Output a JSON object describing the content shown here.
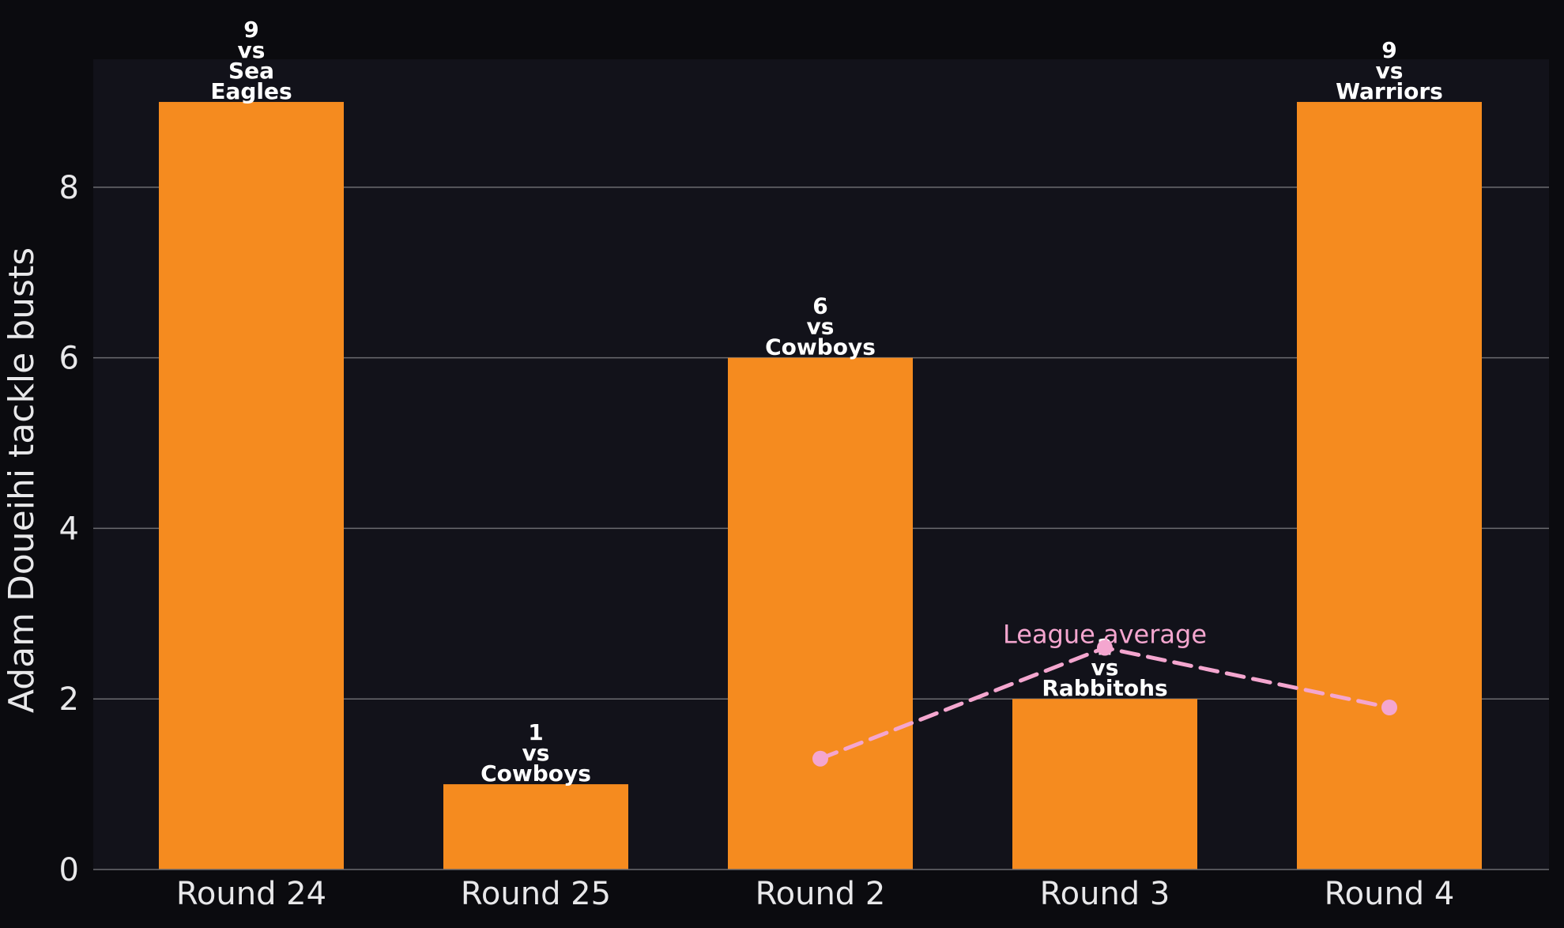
{
  "chart_data": {
    "type": "bar",
    "categories": [
      "Round 24",
      "Round 25",
      "Round 2",
      "Round 3",
      "Round 4"
    ],
    "values": [
      9,
      1,
      6,
      2,
      9
    ],
    "opponents": [
      "Sea Eagles",
      "Cowboys",
      "Cowboys",
      "Rabbitohs",
      "Warriors"
    ],
    "vs_word": "vs",
    "ylabel": "Adam Doueihi tackle busts",
    "xlabel": "",
    "ylim": [
      0,
      9.5
    ],
    "yticks": [
      0,
      2,
      4,
      6,
      8
    ],
    "grid": true,
    "series": [
      {
        "type": "line",
        "style": "dashed",
        "x": [
          "Round 2",
          "Round 3",
          "Round 4"
        ],
        "values": [
          1.3,
          2.6,
          1.9
        ]
      }
    ],
    "annotation": "League average",
    "colors": {
      "bar": "#f58b1f",
      "league_avg": "#f4a6cf",
      "plot_bg": "#12121a",
      "figure_bg": "#0b0b0f",
      "grid": "#6b6b70",
      "text": "#e8e8ea"
    }
  }
}
